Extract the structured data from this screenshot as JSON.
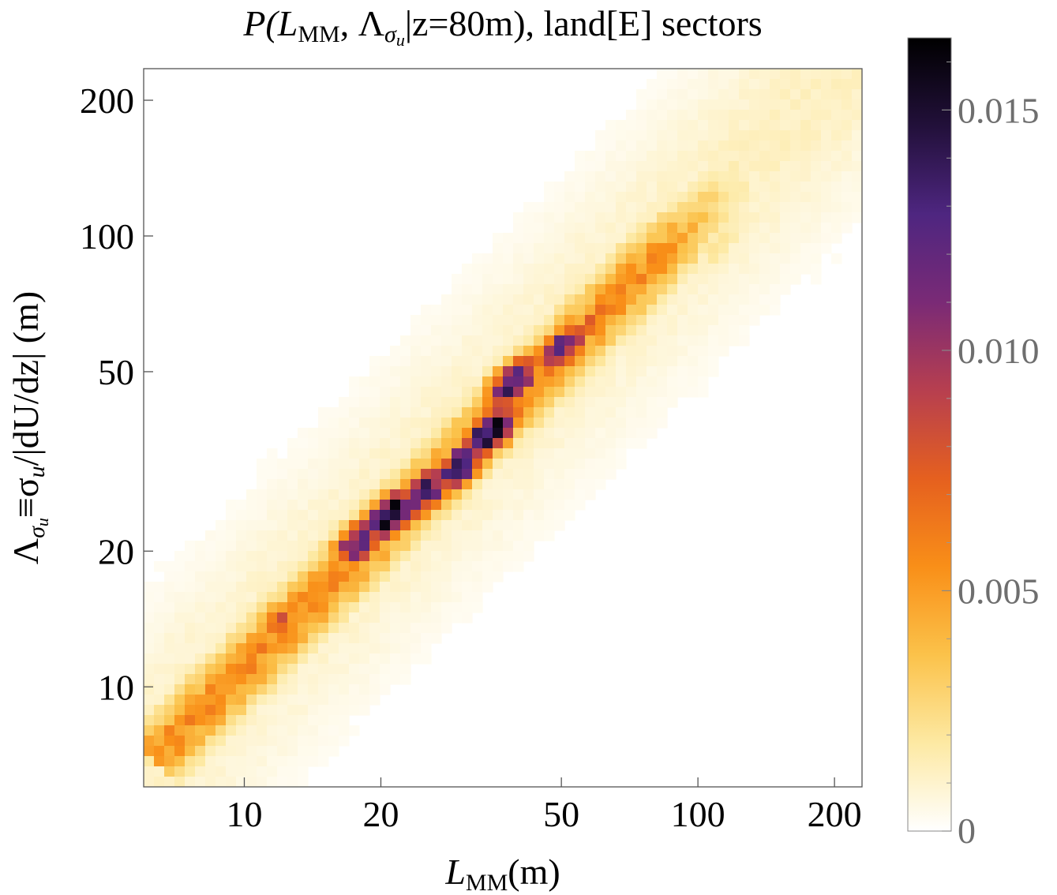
{
  "chart_data": {
    "type": "heatmap",
    "title": {
      "prefix": "P(",
      "l_main": "L",
      "l_sub": "MM",
      "sep": ", ",
      "lambda_main": "Λ",
      "lambda_sub": "σ",
      "lambda_subsub": "u",
      "cond": "|z=80m), land[E] sectors"
    },
    "xlabel": {
      "main": "L",
      "sub": "MM",
      "unit": "(m)"
    },
    "ylabel": {
      "lambda_main": "Λ",
      "lambda_sub": "σ",
      "lambda_subsub": "u",
      "rest": "≡σ",
      "rest_sub": "u",
      "tail": "/|dU/dz| (m)"
    },
    "x_scale": "log",
    "y_scale": "log",
    "xlim": [
      6,
      230
    ],
    "ylim": [
      6,
      235
    ],
    "x_ticks": [
      10,
      20,
      50,
      100,
      200
    ],
    "y_ticks": [
      10,
      20,
      50,
      100,
      200
    ],
    "x_tick_labels": [
      "10",
      "20",
      "50",
      "100",
      "200"
    ],
    "y_tick_labels": [
      "10",
      "20",
      "50",
      "100",
      "200"
    ],
    "colorbar": {
      "range": [
        0,
        0.0165
      ],
      "ticks": [
        0,
        0.005,
        0.01,
        0.015
      ],
      "tick_labels": [
        "0",
        "0.005",
        "0.010",
        "0.015"
      ],
      "colormap": "inferno_reversed",
      "colors": [
        "#ffffff",
        "#fde9a3",
        "#fbc24a",
        "#f98f18",
        "#e5601f",
        "#b73f4f",
        "#7a2a76",
        "#4e2680",
        "#22103a",
        "#000000"
      ]
    },
    "grid": false,
    "ridge": {
      "description_points_x": [
        6.5,
        10,
        20,
        30,
        40,
        50,
        70,
        100
      ],
      "peak_points": [
        {
          "x": 21,
          "y": 24,
          "value": 0.016
        },
        {
          "x": 35,
          "y": 37,
          "value": 0.0165
        },
        {
          "x": 39,
          "y": 47,
          "value": 0.014
        },
        {
          "x": 30,
          "y": 31,
          "value": 0.0145
        },
        {
          "x": 18,
          "y": 21,
          "value": 0.013
        },
        {
          "x": 50,
          "y": 56,
          "value": 0.0125
        },
        {
          "x": 25,
          "y": 27,
          "value": 0.0135
        },
        {
          "x": 12,
          "y": 14,
          "value": 0.0075
        },
        {
          "x": 9,
          "y": 10,
          "value": 0.006
        },
        {
          "x": 7,
          "y": 7.6,
          "value": 0.0045
        },
        {
          "x": 60,
          "y": 66,
          "value": 0.007
        },
        {
          "x": 80,
          "y": 85,
          "value": 0.0035
        },
        {
          "x": 110,
          "y": 95,
          "value": 0.002
        }
      ]
    }
  }
}
